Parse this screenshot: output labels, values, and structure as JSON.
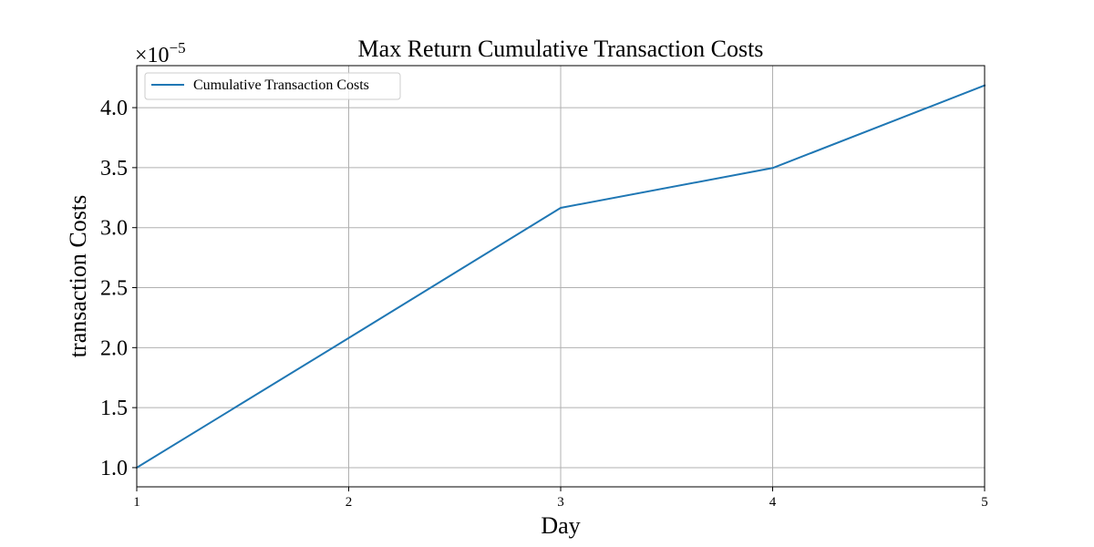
{
  "chart_data": {
    "type": "line",
    "title": "Max Return Cumulative Transaction Costs",
    "xlabel": "Day",
    "ylabel": "transaction Costs",
    "x": [
      1,
      2,
      3,
      4,
      5
    ],
    "series": [
      {
        "name": "Cumulative Transaction Costs",
        "values": [
          1e-05,
          2.08e-05,
          3.165e-05,
          3.497e-05,
          4.185e-05
        ],
        "color": "#1f77b4"
      }
    ],
    "xlim": [
      1,
      5
    ],
    "ylim": [
      8.4e-06,
      4.35e-05
    ],
    "x_ticks": [
      1,
      2,
      3,
      4,
      5
    ],
    "x_tick_labels": [
      "1",
      "2",
      "3",
      "4",
      "5"
    ],
    "y_ticks": [
      1e-05,
      1.5e-05,
      2e-05,
      2.5e-05,
      3e-05,
      3.5e-05,
      4e-05
    ],
    "y_tick_labels": [
      "1.0",
      "1.5",
      "2.0",
      "2.5",
      "3.0",
      "3.5",
      "4.0"
    ],
    "y_offset": {
      "base": "×10",
      "exponent": "−5"
    },
    "grid": true,
    "legend_position": "top-left"
  }
}
